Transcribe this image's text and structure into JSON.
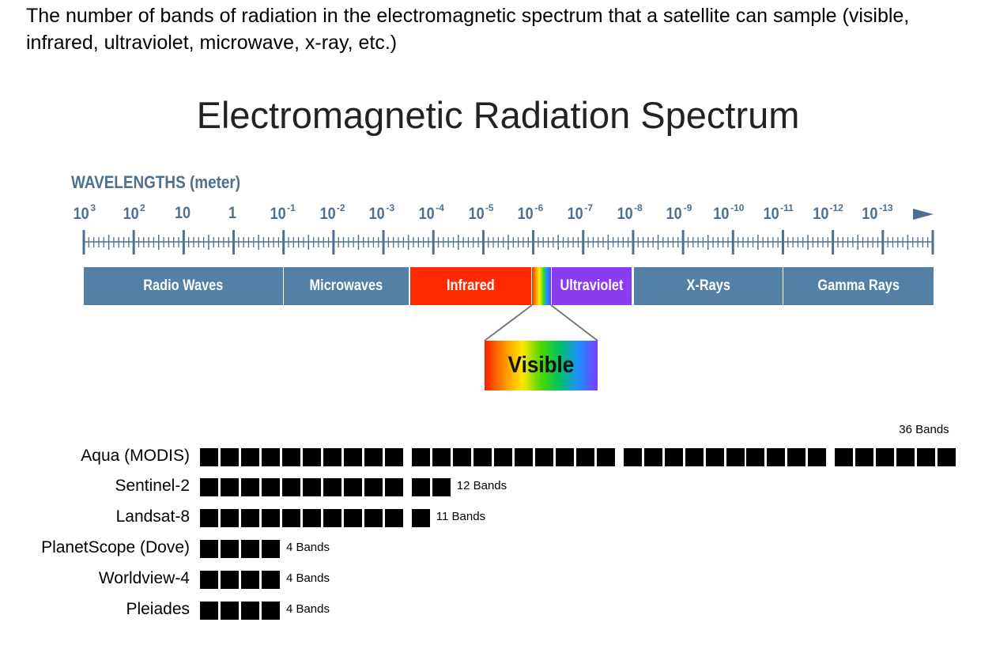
{
  "intro": "The number of bands of radiation in the electromagnetic spectrum that a satellite can sample (visible, infrared, ultraviolet, microwave, x-ray, etc.)",
  "title": "Electromagnetic Radiation Spectrum",
  "wavelength_label": "WAVELENGTHS (meter)",
  "wavelengths": [
    {
      "base": "10",
      "exp": "3"
    },
    {
      "base": "10",
      "exp": "2"
    },
    {
      "base": "10",
      "exp": ""
    },
    {
      "base": "1",
      "exp": ""
    },
    {
      "base": "10",
      "exp": "-1"
    },
    {
      "base": "10",
      "exp": "-2"
    },
    {
      "base": "10",
      "exp": "-3"
    },
    {
      "base": "10",
      "exp": "-4"
    },
    {
      "base": "10",
      "exp": "-5"
    },
    {
      "base": "10",
      "exp": "-6"
    },
    {
      "base": "10",
      "exp": "-7"
    },
    {
      "base": "10",
      "exp": "-8"
    },
    {
      "base": "10",
      "exp": "-9"
    },
    {
      "base": "10",
      "exp": "-10"
    },
    {
      "base": "10",
      "exp": "-11"
    },
    {
      "base": "10",
      "exp": "-12"
    },
    {
      "base": "10",
      "exp": "-13"
    }
  ],
  "bands": [
    {
      "label": "Radio Waves",
      "color": "#5580a5"
    },
    {
      "label": "Microwaves",
      "color": "#5580a5"
    },
    {
      "label": "Infrared",
      "color": "#ff2a00"
    },
    {
      "label": "Ultraviolet",
      "color": "#8a3cf0"
    },
    {
      "label": "X-Rays",
      "color": "#5580a5"
    },
    {
      "label": "Gamma Rays",
      "color": "#5580a5"
    }
  ],
  "visible_label": "Visible",
  "satellites": [
    {
      "name": "Aqua (MODIS)",
      "bands": 36,
      "group_size": 10,
      "label": "36 Bands"
    },
    {
      "name": "Sentinel-2",
      "bands": 12,
      "group_size": 10,
      "label": "12 Bands"
    },
    {
      "name": "Landsat-8",
      "bands": 11,
      "group_size": 10,
      "label": "11 Bands"
    },
    {
      "name": "PlanetScope (Dove)",
      "bands": 4,
      "group_size": 10,
      "label": "4 Bands"
    },
    {
      "name": "Worldview-4",
      "bands": 4,
      "group_size": 10,
      "label": "4 Bands"
    },
    {
      "name": "Pleiades",
      "bands": 4,
      "group_size": 10,
      "label": "4 Bands"
    }
  ]
}
